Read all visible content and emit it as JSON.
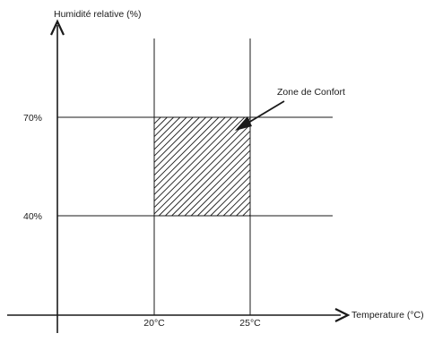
{
  "diagram": {
    "y_axis_label": "Humidité relative (%)",
    "x_axis_label": "Temperature (°C)",
    "y_ticks": [
      "70%",
      "40%"
    ],
    "x_ticks": [
      "20°C",
      "25°C"
    ],
    "zone_label": "Zone de Confort",
    "comfort_zone": {
      "temperature_min": "20°C",
      "temperature_max": "25°C",
      "humidity_min": "40%",
      "humidity_max": "70%"
    },
    "colors": {
      "line": "#1a1a1a",
      "background": "#ffffff"
    }
  }
}
